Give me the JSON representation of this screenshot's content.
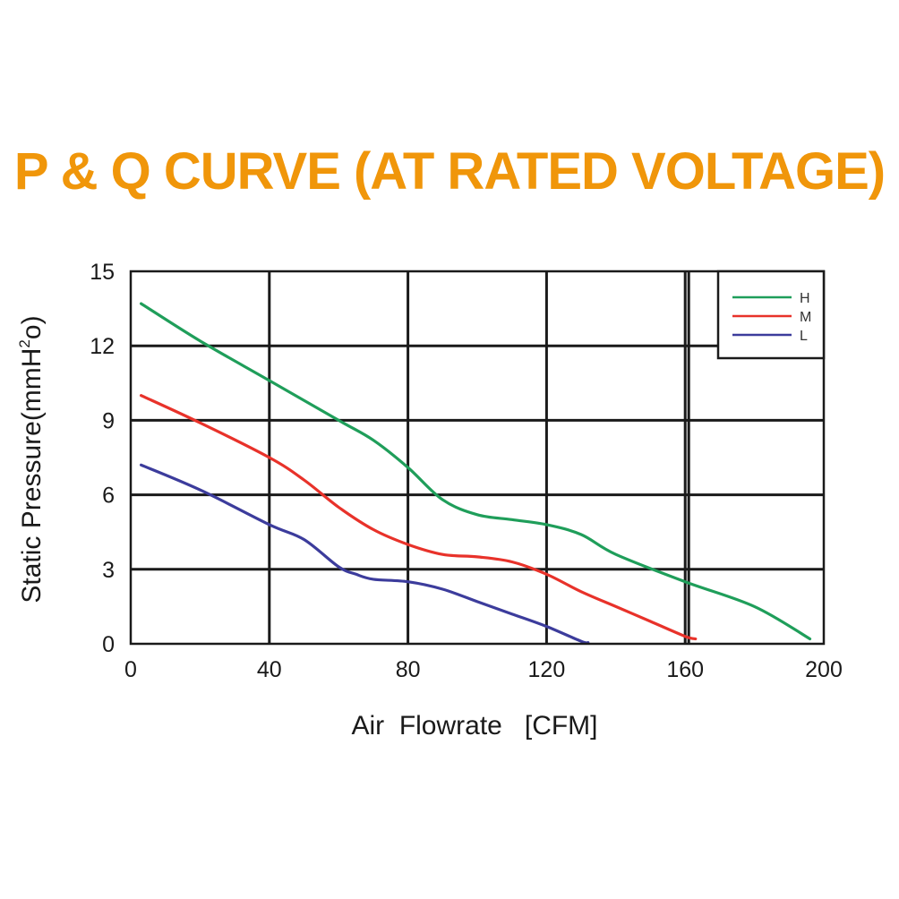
{
  "chart_data": {
    "type": "line",
    "title": "P & Q CURVE (AT RATED VOLTAGE)",
    "xlabel": "Air  Flowrate   [CFM]",
    "ylabel": "Static Pressure(mmH",
    "ylabel_sup": "2",
    "ylabel_end": "o)",
    "xlim": [
      0,
      200
    ],
    "ylim": [
      0,
      15
    ],
    "xticks": [
      0,
      40,
      80,
      120,
      160,
      200
    ],
    "yticks": [
      0,
      3,
      6,
      9,
      12,
      15
    ],
    "extra_vertical_gridline": 160,
    "grid": true,
    "legend_position": "top-right",
    "series": [
      {
        "name": "H",
        "color": "#1f9e5a",
        "x": [
          3,
          20,
          40,
          60,
          70,
          80,
          90,
          100,
          110,
          120,
          130,
          140,
          160,
          180,
          196
        ],
        "y": [
          13.7,
          12.2,
          10.6,
          9.0,
          8.2,
          7.1,
          5.8,
          5.2,
          5.0,
          4.8,
          4.4,
          3.6,
          2.5,
          1.5,
          0.2
        ]
      },
      {
        "name": "M",
        "color": "#e8322a",
        "x": [
          3,
          20,
          40,
          50,
          60,
          70,
          80,
          90,
          100,
          110,
          120,
          130,
          140,
          150,
          160,
          163
        ],
        "y": [
          10.0,
          8.9,
          7.5,
          6.6,
          5.5,
          4.6,
          4.0,
          3.6,
          3.5,
          3.3,
          2.8,
          2.1,
          1.5,
          0.9,
          0.3,
          0.2
        ]
      },
      {
        "name": "L",
        "color": "#3c3c9c",
        "x": [
          3,
          20,
          40,
          50,
          60,
          65,
          70,
          80,
          90,
          100,
          110,
          120,
          130,
          132
        ],
        "y": [
          7.2,
          6.2,
          4.8,
          4.2,
          3.1,
          2.8,
          2.6,
          2.5,
          2.2,
          1.7,
          1.2,
          0.7,
          0.1,
          0.05
        ]
      }
    ]
  }
}
